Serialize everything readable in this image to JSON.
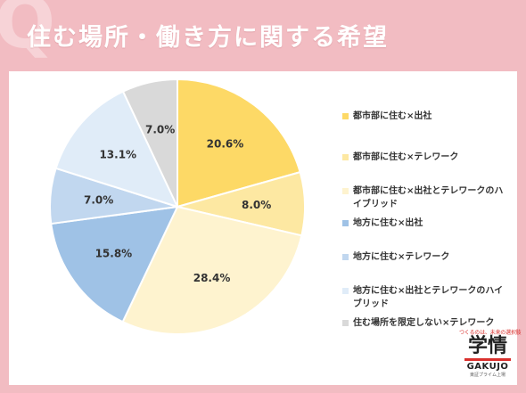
{
  "header": {
    "title": "住む場所・働き方に関する希望"
  },
  "brand": {
    "tagline": "つくるのは、未来の選択肢",
    "logo_text": "学情",
    "name": "GAKUJO",
    "sub": "東証プライム上場"
  },
  "colors": {
    "background": "#f2bcc2",
    "card": "#ffffff"
  },
  "chart_data": {
    "type": "pie",
    "title": "",
    "unit": "%",
    "start": "12 o'clock, clockwise",
    "slices": [
      {
        "label": "都市部に住む×出社",
        "value": 20.6,
        "display": "20.6%",
        "color": "#fdd966"
      },
      {
        "label": "都市部に住む×テレワーク",
        "value": 8.0,
        "display": "8.0%",
        "color": "#fde8a2"
      },
      {
        "label": "都市部に住む×出社とテレワークのハイブリッド",
        "value": 28.4,
        "display": "28.4%",
        "color": "#fef3cf"
      },
      {
        "label": "地方に住む×出社",
        "value": 15.8,
        "display": "15.8%",
        "color": "#9fc2e6"
      },
      {
        "label": "地方に住む×テレワーク",
        "value": 7.0,
        "display": "7.0%",
        "color": "#c1d7ef"
      },
      {
        "label": "地方に住む×出社とテレワークのハイブリッド",
        "value": 13.1,
        "display": "13.1%",
        "color": "#e0ecf8"
      },
      {
        "label": "住む場所を限定しない×テレワーク",
        "value": 7.0,
        "display": "7.0%",
        "color": "#d9d9d9"
      }
    ],
    "legend_position": "right"
  }
}
